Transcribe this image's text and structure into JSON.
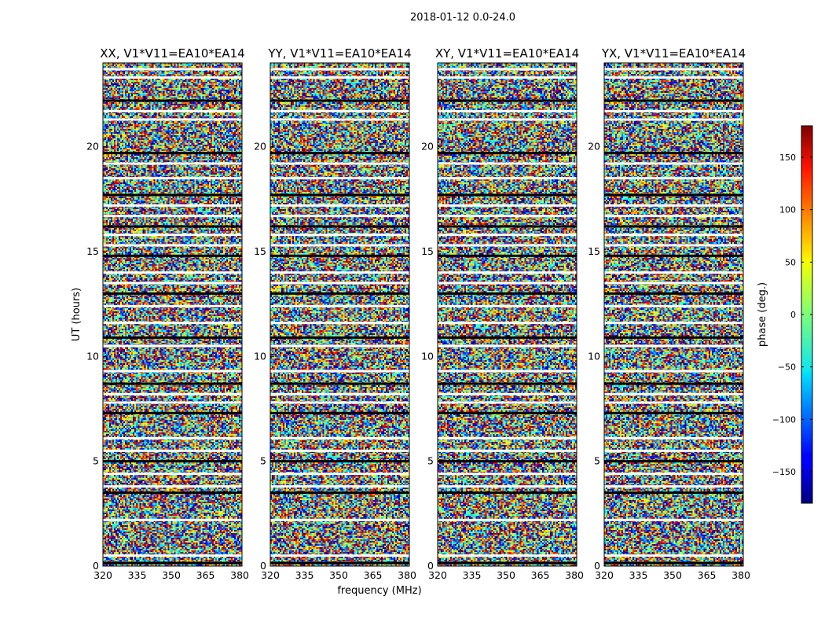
{
  "figure_title": "2018-01-12 0.0-24.0",
  "chart_data": {
    "type": "heatmap",
    "title": "2018-01-12 0.0-24.0",
    "xlabel": "frequency (MHz)",
    "ylabel": "UT (hours)",
    "xlim": [
      320,
      381
    ],
    "ylim": [
      0,
      24
    ],
    "x_ticks": [
      320,
      335,
      350,
      365,
      380
    ],
    "y_ticks": [
      0,
      5,
      10,
      15,
      20
    ],
    "colormap": "jet",
    "colorbar": {
      "label": "phase (deg.)",
      "range": [
        -180,
        180
      ],
      "ticks": [
        -150,
        -100,
        -50,
        0,
        50,
        100,
        150
      ],
      "tick_labels": [
        "−150",
        "−100",
        "−50",
        "0",
        "50",
        "100",
        "150"
      ]
    },
    "panels": [
      {
        "title": "XX, V1*V11=EA10*EA14",
        "polarization": "XX"
      },
      {
        "title": "YY, V1*V11=EA10*EA14",
        "polarization": "YY"
      },
      {
        "title": "XY, V1*V11=EA10*EA14",
        "polarization": "XY"
      },
      {
        "title": "YX, V1*V11=EA10*EA14",
        "polarization": "YX"
      }
    ],
    "data_gaps_ut_hours": [
      0.15,
      0.5,
      2.2,
      3.5,
      3.8,
      4.4,
      5.0,
      5.5,
      6.1,
      7.3,
      7.8,
      8.2,
      8.7,
      9.3,
      10.5,
      10.9,
      11.6,
      12.4,
      13.0,
      13.5,
      14.0,
      14.8,
      15.3,
      15.8,
      16.2,
      16.7,
      17.2,
      17.7,
      18.5,
      19.2,
      19.7,
      21.3,
      21.7,
      22.2,
      23.3,
      23.7
    ]
  }
}
